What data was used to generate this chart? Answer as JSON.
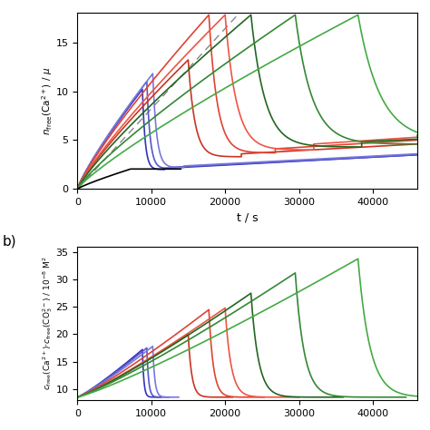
{
  "panel_a": {
    "xlabel": "t / s",
    "ylabel_top": "n_free(Ca2+) / mu",
    "xlim": [
      0,
      46000
    ],
    "ylim": [
      0,
      18
    ],
    "yticks": [
      0,
      5,
      10,
      15
    ],
    "xticks": [
      0,
      10000,
      20000,
      30000,
      40000
    ],
    "dashed_slope": 0.00082,
    "black_curve": {
      "split_t": 7200,
      "flat_n": 2.05,
      "flat_end": 14000,
      "color": "#000000"
    },
    "curves": [
      {
        "split_t": 8800,
        "peak_n": 10.2,
        "drop_t": 500,
        "after_n": 2.0,
        "after_end": 3.5,
        "color": "#3333bb",
        "lw": 1.2
      },
      {
        "split_t": 9400,
        "peak_n": 11.0,
        "drop_t": 600,
        "after_n": 2.1,
        "after_end": 3.5,
        "color": "#5555cc",
        "lw": 1.2
      },
      {
        "split_t": 10200,
        "peak_n": 11.8,
        "drop_t": 700,
        "after_n": 2.2,
        "after_end": 3.6,
        "color": "#7777dd",
        "lw": 1.2
      },
      {
        "split_t": 15000,
        "peak_n": 13.2,
        "drop_t": 1200,
        "after_n": 3.3,
        "after_end": 4.6,
        "color": "#cc3322",
        "lw": 1.2
      },
      {
        "split_t": 17800,
        "peak_n": 17.8,
        "drop_t": 1500,
        "after_n": 3.7,
        "after_end": 5.0,
        "color": "#dd4433",
        "lw": 1.2
      },
      {
        "split_t": 20000,
        "peak_n": 17.8,
        "drop_t": 2000,
        "after_n": 4.0,
        "after_end": 5.3,
        "color": "#ee5544",
        "lw": 1.2
      },
      {
        "split_t": 23500,
        "peak_n": 17.8,
        "drop_t": 2500,
        "after_n": 4.3,
        "after_end": 5.1,
        "color": "#226622",
        "lw": 1.2
      },
      {
        "split_t": 29500,
        "peak_n": 17.8,
        "drop_t": 3000,
        "after_n": 4.6,
        "after_end": 5.3,
        "color": "#338833",
        "lw": 1.2
      },
      {
        "split_t": 38000,
        "peak_n": 17.8,
        "drop_t": 4000,
        "after_n": 4.9,
        "after_end": 5.5,
        "color": "#44aa44",
        "lw": 1.2
      }
    ]
  },
  "panel_b": {
    "xlim": [
      0,
      46000
    ],
    "ylim": [
      8,
      36
    ],
    "yticks": [
      10,
      15,
      20,
      25,
      30,
      35
    ],
    "xticks": [
      0,
      10000,
      20000,
      30000,
      40000
    ],
    "curves": [
      {
        "split_t": 8800,
        "peak_n": 17.2,
        "drop_t": 500,
        "color": "#3333bb",
        "lw": 1.2
      },
      {
        "split_t": 9400,
        "peak_n": 17.5,
        "drop_t": 600,
        "color": "#5555cc",
        "lw": 1.2
      },
      {
        "split_t": 10200,
        "peak_n": 17.8,
        "drop_t": 700,
        "color": "#7777dd",
        "lw": 1.2
      },
      {
        "split_t": 15000,
        "peak_n": 20.0,
        "drop_t": 1200,
        "color": "#cc3322",
        "lw": 1.2
      },
      {
        "split_t": 17800,
        "peak_n": 24.5,
        "drop_t": 1500,
        "color": "#dd4433",
        "lw": 1.2
      },
      {
        "split_t": 20000,
        "peak_n": 24.8,
        "drop_t": 2000,
        "color": "#ee5544",
        "lw": 1.2
      },
      {
        "split_t": 23500,
        "peak_n": 27.5,
        "drop_t": 2500,
        "color": "#226622",
        "lw": 1.2
      },
      {
        "split_t": 29500,
        "peak_n": 31.2,
        "drop_t": 3000,
        "color": "#338833",
        "lw": 1.2
      },
      {
        "split_t": 38000,
        "peak_n": 33.8,
        "drop_t": 4000,
        "color": "#44aa44",
        "lw": 1.2
      }
    ]
  }
}
